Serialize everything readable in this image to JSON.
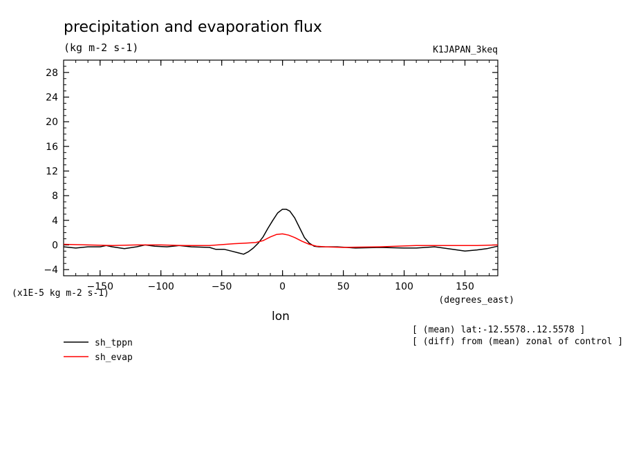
{
  "chart_data": {
    "type": "line",
    "title": "precipitation and evaporation flux",
    "subtitle": "(kg m-2 s-1)",
    "run_label": "K1JAPAN_3keq",
    "xlabel": "lon",
    "xunits": "(degrees_east)",
    "ylabel": "(x1E-5 kg m-2 s-1)",
    "xlim": [
      -180,
      177
    ],
    "ylim": [
      -5,
      30
    ],
    "xticks": [
      -150,
      -100,
      -50,
      0,
      50,
      100,
      150
    ],
    "yticks": [
      -4,
      0,
      4,
      8,
      12,
      16,
      20,
      24,
      28
    ],
    "notes": [
      "[ (mean) lat:-12.5578..12.5578 ]",
      "[ (diff) from (mean) zonal of control ]"
    ],
    "grid": false,
    "legend_position": "bottom-left",
    "series": [
      {
        "name": "sh_tppn",
        "color": "#000000",
        "x": [
          -180,
          -170,
          -160,
          -150,
          -145,
          -140,
          -130,
          -120,
          -113,
          -105,
          -95,
          -85,
          -75,
          -60,
          -55,
          -48,
          -42,
          -36,
          -32,
          -28,
          -24,
          -20,
          -16,
          -12,
          -8,
          -4,
          0,
          3,
          6,
          10,
          14,
          18,
          22,
          26,
          30,
          35,
          45,
          60,
          80,
          100,
          110,
          125,
          140,
          150,
          160,
          168,
          177
        ],
        "y": [
          -0.3,
          -0.5,
          -0.3,
          -0.3,
          -0.1,
          -0.3,
          -0.6,
          -0.3,
          0.0,
          -0.2,
          -0.3,
          -0.1,
          -0.3,
          -0.4,
          -0.7,
          -0.7,
          -1.0,
          -1.3,
          -1.5,
          -1.1,
          -0.5,
          0.3,
          1.3,
          2.7,
          4.0,
          5.2,
          5.8,
          5.8,
          5.5,
          4.4,
          2.8,
          1.2,
          0.3,
          -0.2,
          -0.3,
          -0.3,
          -0.3,
          -0.5,
          -0.4,
          -0.5,
          -0.5,
          -0.3,
          -0.7,
          -1.0,
          -0.8,
          -0.6,
          -0.2
        ]
      },
      {
        "name": "sh_evap",
        "color": "#ff0000",
        "x": [
          -180,
          -160,
          -140,
          -120,
          -100,
          -80,
          -60,
          -40,
          -30,
          -22,
          -16,
          -10,
          -5,
          0,
          5,
          10,
          16,
          22,
          28,
          35,
          50,
          80,
          110,
          140,
          160,
          177
        ],
        "y": [
          0.1,
          0.0,
          -0.1,
          0.0,
          0.0,
          -0.1,
          -0.1,
          0.2,
          0.3,
          0.4,
          0.7,
          1.3,
          1.7,
          1.8,
          1.6,
          1.2,
          0.6,
          0.1,
          -0.2,
          -0.3,
          -0.4,
          -0.3,
          -0.1,
          -0.1,
          -0.1,
          0.0
        ]
      }
    ]
  }
}
